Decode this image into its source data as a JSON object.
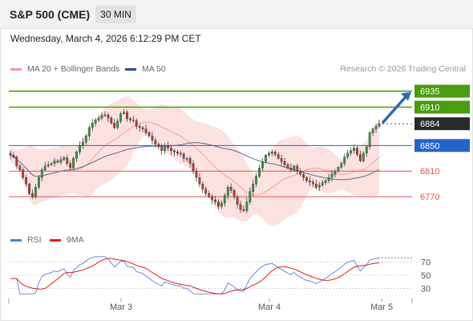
{
  "header": {
    "title": "S&P 500 (CME)",
    "timeframe": "30 MIN",
    "timestamp": "Wednesday, March 4, 2026 6:12:29 PM CET"
  },
  "legend": {
    "ma20_label": "MA 20 + Bollinger Bands",
    "ma50_label": "MA 50",
    "research": "Research © 2026 Trading Central",
    "rsi_label": "RSI",
    "ma9_label": "9MA"
  },
  "colors": {
    "candle_up": "#2e9e3e",
    "candle_down": "#c0392b",
    "band_fill": "#fbdcdc",
    "ma20": "#f2a0a0",
    "ma50": "#5b6b8e",
    "resistance": "#4a9c10",
    "pivot": "#2563c9",
    "support": "#e05555",
    "last": "#2a2a2a",
    "rsi": "#5b7fd6",
    "rsi_ma": "#d62020",
    "arrow": "#2d6ab3"
  },
  "chart_data": [
    {
      "type": "candlestick",
      "title": "S&P 500 (CME)",
      "timeframe": "30 MIN",
      "x_ticks": [
        "Mar 3",
        "Mar 4",
        "Mar 5"
      ],
      "ylim": [
        6720,
        6952
      ],
      "last_price": 6884,
      "levels": [
        {
          "value": 6935,
          "label": "6935",
          "kind": "resistance"
        },
        {
          "value": 6910,
          "label": "6910",
          "kind": "resistance"
        },
        {
          "value": 6884,
          "label": "6884",
          "kind": "last"
        },
        {
          "value": 6850,
          "label": "6850",
          "kind": "pivot"
        },
        {
          "value": 6810,
          "label": "6810",
          "kind": "support"
        },
        {
          "value": 6770,
          "label": "6770",
          "kind": "support"
        }
      ],
      "closes": [
        6835,
        6832,
        6818,
        6812,
        6800,
        6790,
        6775,
        6770,
        6785,
        6800,
        6812,
        6818,
        6820,
        6822,
        6826,
        6824,
        6828,
        6831,
        6822,
        6815,
        6830,
        6840,
        6850,
        6855,
        6865,
        6878,
        6885,
        6890,
        6893,
        6897,
        6898,
        6893,
        6885,
        6878,
        6888,
        6900,
        6902,
        6892,
        6890,
        6889,
        6880,
        6878,
        6876,
        6870,
        6865,
        6858,
        6852,
        6848,
        6842,
        6850,
        6846,
        6842,
        6840,
        6838,
        6837,
        6830,
        6830,
        6822,
        6810,
        6800,
        6790,
        6782,
        6775,
        6770,
        6765,
        6762,
        6755,
        6760,
        6772,
        6785,
        6780,
        6770,
        6758,
        6750,
        6748,
        6762,
        6778,
        6790,
        6802,
        6815,
        6825,
        6835,
        6838,
        6840,
        6836,
        6830,
        6825,
        6820,
        6815,
        6812,
        6818,
        6810,
        6805,
        6800,
        6795,
        6793,
        6790,
        6785,
        6788,
        6792,
        6795,
        6800,
        6805,
        6810,
        6816,
        6822,
        6832,
        6838,
        6842,
        6846,
        6836,
        6826,
        6838,
        6848,
        6870,
        6876,
        6880,
        6884
      ]
    },
    {
      "type": "line",
      "title": "RSI",
      "series": [
        {
          "name": "RSI"
        },
        {
          "name": "9MA"
        }
      ],
      "y_ticks": [
        70,
        50,
        30
      ],
      "ylim": [
        0,
        100
      ]
    }
  ]
}
